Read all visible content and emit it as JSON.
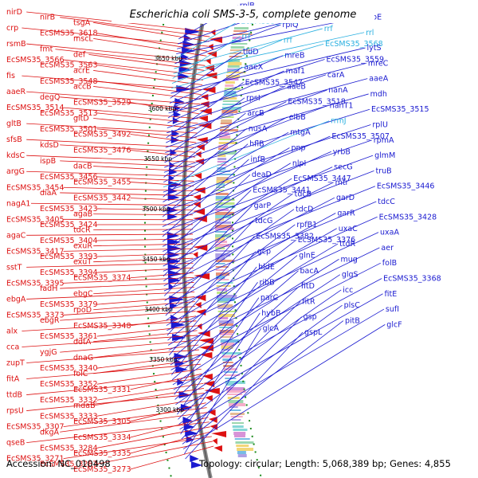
{
  "title": "Escherichia coli SMS-3-5, complete genome",
  "footer": {
    "accession": "Accession: NC_010498",
    "summary": "Topology: circular; Length: 5,068,389 bp; Genes: 4,855"
  },
  "colors": {
    "reverse_strand": "#dd1111",
    "forward_strand": "#1a1ad0",
    "rna": "#2ab0e0",
    "backbone": "#888888",
    "dots": "#1a8a1a"
  },
  "kbp_ticks": [
    "3650 kbp",
    "3600 kbp",
    "3550 kbp",
    "3500 kbp",
    "3450 kbp",
    "3400 kbp",
    "3350 kbp",
    "3300 kbp"
  ],
  "left_labels": [
    "nirD",
    "nirB",
    "tsgA",
    "crp",
    "EcSMS35_3618",
    "mscL",
    "rsmB",
    "fmt",
    "def",
    "EcSMS35_3566",
    "EcSMS35_3563",
    "acrE",
    "fis",
    "EcSMS35_3548",
    "accB",
    "aaeR",
    "degQ",
    "EcSMS35_3529",
    "EcSMS35_3514",
    "EcSMS35_3513",
    "gltD",
    "gltB",
    "EcSMS35_3501",
    "EcSMS35_3492",
    "sfsB",
    "kdsD",
    "EcSMS35_3476",
    "kdsC",
    "ispB",
    "dacB",
    "argG",
    "EcSMS35_3456",
    "EcSMS35_3455",
    "EcSMS35_3454",
    "diaA",
    "EcSMS35_3442",
    "nagA1",
    "EcSMS35_3423",
    "agaB",
    "EcSMS35_3405",
    "EcSMS35_3424",
    "tdcR",
    "agaC",
    "EcSMS35_3404",
    "exuR",
    "EcSMS35_3417",
    "EcSMS35_3393",
    "exuT",
    "sstT",
    "EcSMS35_3394",
    "EcSMS35_3374",
    "EcSMS35_3395",
    "fadH",
    "ebgC",
    "ebgA",
    "EcSMS35_3379",
    "rpoD",
    "EcSMS35_3373",
    "ebgR",
    "EcSMS35_3348",
    "alx",
    "EcSMS35_3361",
    "ddtA",
    "cca",
    "ygjG",
    "dnaG",
    "zupT",
    "EcSMS35_3340",
    "folC",
    "fitA",
    "EcSMS35_3352",
    "EcSMS35_3331",
    "ttdB",
    "EcSMS35_3332",
    "mdaB",
    "rpsU",
    "EcSMS35_3333",
    "EcSMS35_3305",
    "EcSMS35_3307",
    "dkgA",
    "EcSMS35_3334",
    "qseB",
    "EcSMS35_3284",
    "EcSMS35_3335",
    "EcSMS35_3271",
    "EcSMS35_3287",
    "EcSMS35_3273"
  ],
  "right_labels": [
    "rplB",
    "rpsD",
    "rpsK",
    "aroE",
    "EcSMS35_3572",
    "rplQ",
    "rrf",
    "rrl",
    "rrf",
    "rrf",
    "EcSMS35_3568",
    "lytS",
    "tldD",
    "mreB",
    "EcSMS35_3559",
    "mreC",
    "aaeX",
    "maf1",
    "carA",
    "aaeA",
    "EcSMS35_3547",
    "aaeB",
    "nanA",
    "mdh",
    "rpsI",
    "EcSMS35_3518",
    "nanT1",
    "EcSMS35_3515",
    "arcB",
    "elbB",
    "rrmJ",
    "rplU",
    "nusA",
    "mtgA",
    "EcSMS35_3507",
    "rpmA",
    "hflB",
    "pnp",
    "yrbB",
    "glmM",
    "infB",
    "nlpI",
    "secG",
    "truB",
    "deaD",
    "EcSMS35_3447",
    "mtr",
    "EcSMS35_3446",
    "EcSMS35_3441",
    "tdcB",
    "garD",
    "tdcC",
    "garP",
    "tdcD",
    "garR",
    "EcSMS35_3428",
    "tdcG",
    "rpfB1",
    "uxaC",
    "uxaA",
    "EcSMS35_3382",
    "EcSMS35_3376",
    "ttdR",
    "aer",
    "gcp",
    "glnE",
    "mug",
    "folB",
    "hldE",
    "bacA",
    "glgS",
    "EcSMS35_3368",
    "ribB",
    "fitD",
    "icc",
    "fitE",
    "parC",
    "fitR",
    "plsC",
    "sufI",
    "hybB",
    "gsp",
    "pitB",
    "glcF",
    "glcA",
    "gspL"
  ]
}
